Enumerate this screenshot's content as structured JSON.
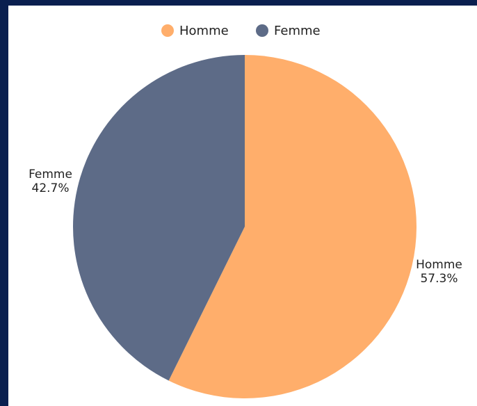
{
  "chart_data": {
    "type": "pie",
    "categories": [
      "Homme",
      "Femme"
    ],
    "values": [
      57.3,
      42.7
    ],
    "value_labels": [
      "57.3%",
      "42.7%"
    ],
    "colors": [
      "#ffae6b",
      "#5d6b87"
    ],
    "legend": "top"
  }
}
